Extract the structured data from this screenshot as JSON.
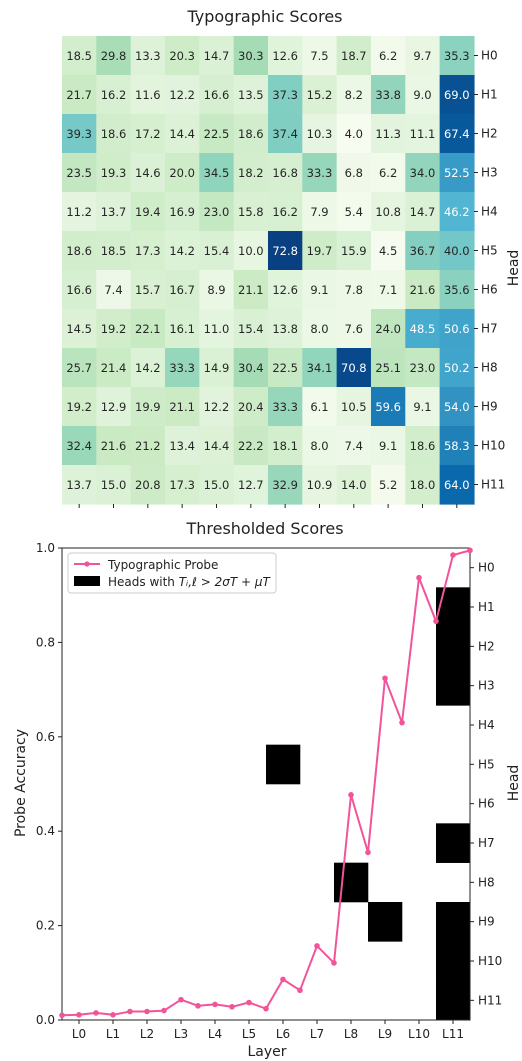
{
  "chart_data": [
    {
      "type": "heatmap",
      "title": "Typographic Scores",
      "ylabel_right": "Head",
      "rows": [
        "H0",
        "H1",
        "H2",
        "H3",
        "H4",
        "H5",
        "H6",
        "H7",
        "H8",
        "H9",
        "H10",
        "H11"
      ],
      "columns": [
        "L0",
        "L1",
        "L2",
        "L3",
        "L4",
        "L5",
        "L6",
        "L7",
        "L8",
        "L9",
        "L10",
        "L11"
      ],
      "values": [
        [
          "18.5",
          "29.8",
          "13.3",
          "20.3",
          "14.7",
          "30.3",
          "12.6",
          "7.5",
          "18.7",
          "6.2",
          "9.7",
          "35.3"
        ],
        [
          "21.7",
          "16.2",
          "11.6",
          "12.2",
          "16.6",
          "13.5",
          "37.3",
          "15.2",
          "8.2",
          "33.8",
          "9.0",
          "69.0"
        ],
        [
          "39.3",
          "18.6",
          "17.2",
          "14.4",
          "22.5",
          "18.6",
          "37.4",
          "10.3",
          "4.0",
          "11.3",
          "11.1",
          "67.4"
        ],
        [
          "23.5",
          "19.3",
          "14.6",
          "20.0",
          "34.5",
          "18.2",
          "16.8",
          "33.3",
          "6.8",
          "6.2",
          "34.0",
          "52.5"
        ],
        [
          "11.2",
          "13.7",
          "19.4",
          "16.9",
          "23.0",
          "15.8",
          "16.2",
          "7.9",
          "5.4",
          "10.8",
          "14.7",
          "46.2"
        ],
        [
          "18.6",
          "18.5",
          "17.3",
          "14.2",
          "15.4",
          "10.0",
          "72.8",
          "19.7",
          "15.9",
          "4.5",
          "36.7",
          "40.0"
        ],
        [
          "16.6",
          "7.4",
          "15.7",
          "16.7",
          "8.9",
          "21.1",
          "12.6",
          "9.1",
          "7.8",
          "7.1",
          "21.6",
          "35.6"
        ],
        [
          "14.5",
          "19.2",
          "22.1",
          "16.1",
          "11.0",
          "15.4",
          "13.8",
          "8.0",
          "7.6",
          "24.0",
          "48.5",
          "50.6"
        ],
        [
          "25.7",
          "21.4",
          "14.2",
          "33.3",
          "14.9",
          "30.4",
          "22.5",
          "34.1",
          "70.8",
          "25.1",
          "23.0",
          "50.2"
        ],
        [
          "19.2",
          "12.9",
          "19.9",
          "21.1",
          "12.2",
          "20.4",
          "33.3",
          "6.1",
          "10.5",
          "59.6",
          "9.1",
          "54.0"
        ],
        [
          "32.4",
          "21.6",
          "21.2",
          "13.4",
          "14.4",
          "22.2",
          "18.1",
          "8.0",
          "7.4",
          "9.1",
          "18.6",
          "58.3"
        ],
        [
          "13.7",
          "15.0",
          "20.8",
          "17.3",
          "15.0",
          "12.7",
          "32.9",
          "10.9",
          "14.0",
          "5.2",
          "18.0",
          "64.0"
        ]
      ],
      "colormap": "GnBu",
      "colors": {
        "low": "#f7fcf0",
        "mid": "#7bccc4",
        "high": "#08589e"
      }
    },
    {
      "type": "line",
      "title": "Thresholded Scores",
      "xlabel": "Layer",
      "ylabel": "Probe Accuracy",
      "ylabel_right": "Head",
      "categories": [
        "L0",
        "L1",
        "L2",
        "L3",
        "L4",
        "L5",
        "L6",
        "L7",
        "L8",
        "L9",
        "L10",
        "L11"
      ],
      "x": [
        -0.5,
        0,
        0.5,
        1,
        1.5,
        2,
        2.5,
        3,
        3.5,
        4,
        4.5,
        5,
        5.5,
        6,
        6.5,
        7,
        7.5,
        8,
        8.5,
        9,
        9.5,
        10,
        10.5,
        11,
        11.5
      ],
      "series": [
        {
          "name": "Typographic Probe",
          "color": "#f2549a",
          "values": [
            0.01,
            0.011,
            0.015,
            0.011,
            0.018,
            0.018,
            0.02,
            0.043,
            0.03,
            0.033,
            0.028,
            0.037,
            0.024,
            0.086,
            0.063,
            0.157,
            0.121,
            0.477,
            0.355,
            0.724,
            0.63,
            0.937,
            0.845,
            0.985,
            0.995
          ]
        }
      ],
      "ylim": [
        0.0,
        1.0
      ],
      "yticks": [
        "0.0",
        "0.2",
        "0.4",
        "0.6",
        "0.8",
        "1.0"
      ],
      "head_ticks": [
        "H0",
        "H1",
        "H2",
        "H3",
        "H4",
        "H5",
        "H6",
        "H7",
        "H8",
        "H9",
        "H10",
        "H11"
      ],
      "legend": {
        "position": "upper-left",
        "line_label": "Typographic Probe",
        "patch_label_prefix": "Heads with ",
        "patch_label_formula": "Tᵢ,ℓ > 2σT + μT"
      },
      "threshold_cells": [
        {
          "layer": "L6",
          "head": "H5"
        },
        {
          "layer": "L8",
          "head": "H8"
        },
        {
          "layer": "L9",
          "head": "H9"
        },
        {
          "layer": "L11",
          "head": "H1"
        },
        {
          "layer": "L11",
          "head": "H2"
        },
        {
          "layer": "L11",
          "head": "H3"
        },
        {
          "layer": "L11",
          "head": "H7"
        },
        {
          "layer": "L11",
          "head": "H9"
        },
        {
          "layer": "L11",
          "head": "H10"
        },
        {
          "layer": "L11",
          "head": "H11"
        }
      ]
    }
  ]
}
